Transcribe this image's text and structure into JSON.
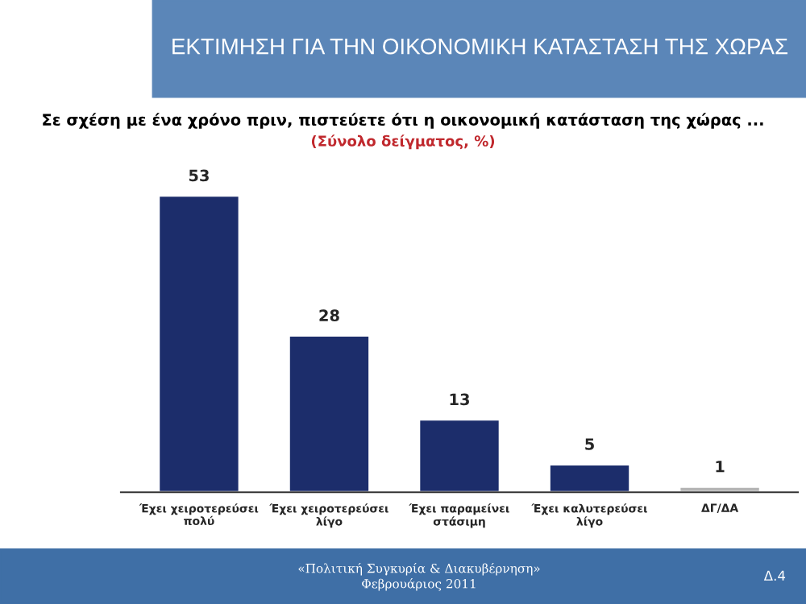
{
  "chart_data": {
    "type": "bar",
    "title": "ΕΚΤΙΜΗΣΗ ΓΙΑ ΤΗΝ ΟΙΚΟΝΟΜΙΚΗ ΚΑΤΑΣΤΑΣΗ ΤΗΣ ΧΩΡΑΣ",
    "subtitle": "Σε σχέση με ένα χρόνο πριν, πιστεύετε ότι η οικονομική κατάσταση της χώρας ...",
    "annotations": [
      "(Σύνολο δείγματος, %)",
      "«Πολιτική Συγκυρία & Διακυβέρνηση»\nΦεβρουάριος 2011",
      "Δ.4"
    ],
    "categories": [
      "Έχει χειροτερεύσει\nπολύ",
      "Έχει χειροτερεύσει\nλίγο",
      "Έχει παραμείνει\nστάσιμη",
      "Έχει καλυτερεύσει\nλίγο",
      "ΔΓ/ΔΑ"
    ],
    "values": [
      53,
      28,
      13,
      5,
      1
    ],
    "colors": [
      "#1c2d6b",
      "#1c2d6b",
      "#1c2d6b",
      "#1c2d6b",
      "#b4b4b4"
    ],
    "data_labels": true
  }
}
